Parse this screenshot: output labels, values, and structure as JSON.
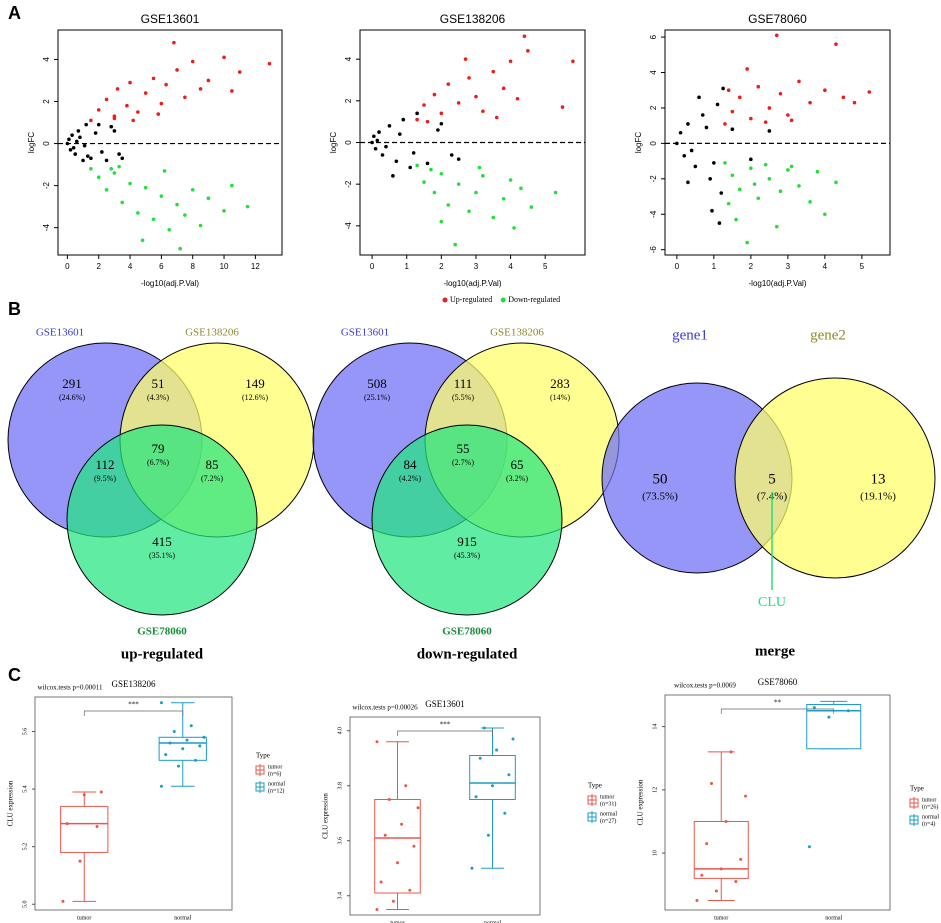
{
  "panel_labels": [
    "A",
    "B",
    "C"
  ],
  "legend": [
    {
      "label": "Up-regulated",
      "color": "#ee1c1c"
    },
    {
      "label": "Down-regulated",
      "color": "#22e03a"
    }
  ],
  "chart_data": [
    {
      "type": "scatter",
      "title": "GSE13601",
      "xlabel": "-log10(adj.P.Val)",
      "ylabel": "logFC",
      "xlim": [
        -0.6,
        13.7
      ],
      "ylim": [
        -5.3,
        5.4
      ],
      "xticks": [
        0,
        2,
        4,
        6,
        8,
        10,
        12
      ],
      "yticks": [
        -4,
        -2,
        0,
        2,
        4
      ],
      "hline": 0,
      "series": [
        {
          "color": "#ee1c1c",
          "x": [
            1.5,
            2,
            2.5,
            3,
            3.2,
            3.8,
            4,
            4.5,
            5,
            5.5,
            6,
            6.3,
            7,
            7.5,
            8,
            8.5,
            9,
            10,
            10.5,
            11,
            12.9,
            3,
            4.2,
            5.8,
            6.8
          ],
          "y": [
            1.1,
            1.6,
            2.1,
            1.3,
            2.6,
            1.8,
            2.9,
            1.5,
            2.4,
            3.1,
            1.9,
            2.8,
            3.5,
            2.2,
            3.9,
            2.6,
            3.0,
            4.1,
            2.5,
            3.4,
            3.8,
            1.2,
            1.1,
            1.4,
            4.8
          ]
        },
        {
          "color": "#22e03a",
          "x": [
            1.5,
            2,
            2.5,
            3,
            3.5,
            4,
            4.5,
            5,
            5.5,
            6,
            6.5,
            7,
            7.5,
            8,
            8.5,
            9,
            10,
            10.5,
            11.5,
            3.3,
            4.8,
            6.2,
            7.2,
            2.8
          ],
          "y": [
            -1.2,
            -1.6,
            -2.2,
            -1.4,
            -2.8,
            -1.9,
            -3.3,
            -2.1,
            -3.6,
            -2.5,
            -4.1,
            -2.9,
            -3.4,
            -2.2,
            -3.9,
            -2.6,
            -3.2,
            -2.0,
            -3.0,
            -1.1,
            -4.6,
            -1.3,
            -5.0,
            -1.2
          ]
        },
        {
          "color": "#000000",
          "x": [
            0,
            0.1,
            0.2,
            0.3,
            0.5,
            0.7,
            1,
            1.2,
            1.5,
            2,
            2.5,
            3,
            3.5,
            0.4,
            0.8,
            1.3,
            1.8,
            2.2,
            2.8,
            3.3,
            0.6,
            1.1
          ],
          "y": [
            0,
            0.2,
            -0.3,
            0.4,
            -0.5,
            0.6,
            -0.8,
            0.9,
            -0.7,
            0.9,
            -0.8,
            0.6,
            -0.7,
            -0.2,
            0.3,
            -0.6,
            0.5,
            -0.4,
            0.8,
            -0.5,
            0.1,
            -0.1
          ]
        }
      ]
    },
    {
      "type": "scatter",
      "title": "GSE138206",
      "xlabel": "-log10(adj.P.Val)",
      "ylabel": "logFC",
      "xlim": [
        -0.35,
        6.15
      ],
      "ylim": [
        -5.4,
        5.4
      ],
      "xticks": [
        0,
        1,
        2,
        3,
        4,
        5
      ],
      "yticks": [
        -4,
        -2,
        0,
        2,
        4
      ],
      "hline": 0,
      "series": [
        {
          "color": "#ee1c1c",
          "x": [
            1.3,
            1.5,
            1.8,
            2,
            2.2,
            2.5,
            2.8,
            3,
            3.2,
            3.5,
            3.8,
            4,
            4.2,
            4.5,
            5.5,
            5.8,
            2.7,
            3.6,
            4.4,
            1.6
          ],
          "y": [
            1.1,
            1.8,
            2.3,
            1.4,
            2.8,
            1.9,
            3.1,
            2.2,
            1.5,
            3.4,
            2.6,
            3.9,
            2.1,
            4.4,
            1.7,
            3.9,
            4.0,
            1.2,
            5.1,
            1.0
          ]
        },
        {
          "color": "#22e03a",
          "x": [
            1.3,
            1.5,
            1.8,
            2,
            2.2,
            2.5,
            2.8,
            3,
            3.2,
            3.5,
            3.8,
            4,
            4.3,
            4.6,
            5.3,
            2.4,
            3.1,
            2.0,
            1.7,
            4.1
          ],
          "y": [
            -1.1,
            -1.9,
            -2.4,
            -1.5,
            -3.0,
            -2.0,
            -3.3,
            -2.4,
            -1.6,
            -3.6,
            -2.7,
            -1.8,
            -2.2,
            -3.1,
            -2.4,
            -4.9,
            -1.2,
            -3.8,
            -1.3,
            -4.1
          ]
        },
        {
          "color": "#000000",
          "x": [
            0,
            0.05,
            0.1,
            0.2,
            0.3,
            0.5,
            0.7,
            0.9,
            1.1,
            1.3,
            1.6,
            2,
            2.5,
            0.4,
            0.8,
            1.2,
            1.9,
            2.3,
            0.15,
            0.6
          ],
          "y": [
            0,
            0.3,
            -0.3,
            0.5,
            -0.6,
            0.8,
            -0.9,
            1.1,
            -1.2,
            1.4,
            -1.0,
            0.9,
            -0.8,
            -0.2,
            0.4,
            -0.5,
            0.6,
            -0.6,
            0.1,
            -1.6
          ]
        }
      ]
    },
    {
      "type": "scatter",
      "title": "GSE78060",
      "xlabel": "-log10(adj.P.Val)",
      "ylabel": "logFC",
      "xlim": [
        -0.32,
        5.76
      ],
      "ylim": [
        -6.3,
        6.4
      ],
      "xticks": [
        0,
        1,
        2,
        3,
        4,
        5
      ],
      "yticks": [
        -6,
        -4,
        -2,
        0,
        2,
        4,
        6
      ],
      "hline": 0,
      "series": [
        {
          "color": "#ee1c1c",
          "x": [
            1.3,
            1.5,
            1.7,
            2,
            2.2,
            2.5,
            2.8,
            3,
            3.3,
            3.6,
            4,
            4.3,
            4.5,
            5.2,
            1.9,
            2.4,
            3.1,
            2.7,
            4.8,
            1.4
          ],
          "y": [
            1.1,
            1.8,
            2.6,
            1.4,
            3.2,
            2.0,
            2.8,
            1.6,
            3.5,
            2.3,
            3.0,
            5.6,
            2.6,
            2.9,
            4.2,
            1.2,
            1.3,
            6.1,
            2.3,
            3.0
          ]
        },
        {
          "color": "#22e03a",
          "x": [
            1.3,
            1.5,
            1.7,
            2,
            2.2,
            2.5,
            2.8,
            3,
            3.3,
            3.6,
            4,
            4.3,
            1.9,
            2.4,
            3.1,
            2.7,
            1.4,
            1.6,
            2.1,
            3.8
          ],
          "y": [
            -1.1,
            -1.8,
            -2.6,
            -1.4,
            -3.1,
            -2.0,
            -2.7,
            -1.5,
            -2.4,
            -3.3,
            -4.0,
            -2.2,
            -5.6,
            -1.2,
            -1.3,
            -4.7,
            -3.4,
            -4.3,
            -2.3,
            -1.6
          ]
        },
        {
          "color": "#000000",
          "x": [
            0,
            0.1,
            0.2,
            0.3,
            0.5,
            0.7,
            0.9,
            1.1,
            1.2,
            0.4,
            0.8,
            1,
            0.6,
            1.25,
            1.5,
            2,
            2.5,
            0.95,
            1.15,
            0.3
          ],
          "y": [
            0,
            0.6,
            -0.7,
            1.1,
            -1.3,
            1.6,
            -2.0,
            2.2,
            -2.8,
            -0.4,
            0.9,
            -1.1,
            2.6,
            3.1,
            0.8,
            -0.9,
            0.7,
            -3.8,
            -4.5,
            -2.2
          ]
        }
      ]
    },
    {
      "type": "venn",
      "title": "up-regulated",
      "sets": [
        {
          "name": "GSE13601",
          "color": "#6e6ef6",
          "label_color": "#3a3ad8"
        },
        {
          "name": "GSE138206",
          "color": "#ffff66",
          "label_color": "#8c8a2a"
        },
        {
          "name": "GSE78060",
          "color": "#22e47e",
          "label_color": "#1a8a3a"
        }
      ],
      "regions": [
        {
          "count": 291,
          "share": 24.6,
          "share_label": "(24.6%)"
        },
        {
          "count": 51,
          "share": 4.3,
          "share_label": "(4.3%)"
        },
        {
          "count": 149,
          "share": 12.6,
          "share_label": "(12.6%)"
        },
        {
          "count": 79,
          "share": 6.7,
          "share_label": "(6.7%)"
        },
        {
          "count": 112,
          "share": 9.5,
          "share_label": "(9.5%)"
        },
        {
          "count": 85,
          "share": 7.2,
          "share_label": "(7.2%)"
        },
        {
          "count": 415,
          "share": 35.1,
          "share_label": "(35.1%)"
        }
      ]
    },
    {
      "type": "venn",
      "title": "down-regulated",
      "sets": [
        {
          "name": "GSE13601",
          "color": "#6e6ef6",
          "label_color": "#3a3ad8"
        },
        {
          "name": "GSE138206",
          "color": "#ffff66",
          "label_color": "#8c8a2a"
        },
        {
          "name": "GSE78060",
          "color": "#22e47e",
          "label_color": "#1a8a3a"
        }
      ],
      "regions": [
        {
          "count": 508,
          "share": 25.1,
          "share_label": "(25.1%)"
        },
        {
          "count": 111,
          "share": 5.5,
          "share_label": "(5.5%)"
        },
        {
          "count": 283,
          "share": 14,
          "share_label": "(14%)"
        },
        {
          "count": 55,
          "share": 2.7,
          "share_label": "(2.7%)"
        },
        {
          "count": 84,
          "share": 4.2,
          "share_label": "(4.2%)"
        },
        {
          "count": 65,
          "share": 3.2,
          "share_label": "(3.2%)"
        },
        {
          "count": 915,
          "share": 45.3,
          "share_label": "(45.3%)"
        }
      ]
    },
    {
      "type": "venn",
      "title": "merge",
      "annotation": "CLU",
      "sets": [
        {
          "name": "gene1",
          "color": "#6e6ef6",
          "label_color": "#3a3ad8"
        },
        {
          "name": "gene2",
          "color": "#ffff66",
          "label_color": "#8c8a2a"
        }
      ],
      "regions": [
        {
          "count": 50,
          "share": 73.5,
          "share_label": "(73.5%)"
        },
        {
          "count": 5,
          "share": 7.4,
          "share_label": "(7.4%)"
        },
        {
          "count": 13,
          "share": 19.1,
          "share_label": "(19.1%)"
        }
      ]
    },
    {
      "type": "box",
      "title": "GSE138206",
      "stat_label": "wilcox.tests p=0.00011",
      "significance": "***",
      "ylabel": "CLU expression",
      "legend_title": "Type",
      "ylim": [
        4.98,
        5.72
      ],
      "yticks": [
        {
          "value": 5.0,
          "label": "5.0"
        },
        {
          "value": 5.2,
          "label": "5.2"
        },
        {
          "value": 5.4,
          "label": "5.4"
        },
        {
          "value": 5.6,
          "label": "5.6"
        }
      ],
      "categories": [
        "tumor",
        "normal"
      ],
      "category_labels": [
        "(n=6)",
        "(n=12)"
      ],
      "colors": [
        "#e8584b",
        "#1d9cc4"
      ],
      "boxes": [
        {
          "low": 5.01,
          "q1": 5.18,
          "median": 5.28,
          "q3": 5.34,
          "high": 5.39,
          "points": [
            5.01,
            5.15,
            5.27,
            5.28,
            5.38,
            5.39
          ]
        },
        {
          "low": 5.41,
          "q1": 5.5,
          "median": 5.56,
          "q3": 5.58,
          "high": 5.7,
          "points": [
            5.41,
            5.48,
            5.5,
            5.52,
            5.54,
            5.55,
            5.56,
            5.57,
            5.58,
            5.6,
            5.62,
            5.7
          ]
        }
      ]
    },
    {
      "type": "box",
      "title": "GSE13601",
      "stat_label": "wilcox.tests p=0.00026",
      "significance": "***",
      "ylabel": "CLU expression",
      "legend_title": "Type",
      "ylim": [
        3.33,
        4.05
      ],
      "yticks": [
        {
          "value": 3.4,
          "label": "3.4"
        },
        {
          "value": 3.6,
          "label": "3.6"
        },
        {
          "value": 3.8,
          "label": "3.8"
        },
        {
          "value": 4.0,
          "label": "4.0"
        }
      ],
      "categories": [
        "tumor",
        "normal"
      ],
      "category_labels": [
        "(n=31)",
        "(n=27)"
      ],
      "colors": [
        "#e8584b",
        "#1d9cc4"
      ],
      "boxes": [
        {
          "low": 3.35,
          "q1": 3.41,
          "median": 3.61,
          "q3": 3.75,
          "high": 3.96,
          "points": [
            3.35,
            3.38,
            3.42,
            3.45,
            3.52,
            3.58,
            3.62,
            3.66,
            3.72,
            3.75,
            3.8,
            3.96
          ]
        },
        {
          "low": 3.5,
          "q1": 3.75,
          "median": 3.81,
          "q3": 3.91,
          "high": 4.01,
          "points": [
            3.5,
            3.62,
            3.7,
            3.76,
            3.8,
            3.84,
            3.9,
            3.93,
            3.97,
            4.01
          ]
        }
      ]
    },
    {
      "type": "box",
      "title": "GSE78060",
      "stat_label": "wilcox.tests p=0.0069",
      "significance": "**",
      "ylabel": "CLU expression",
      "legend_title": "Type",
      "ylim": [
        8.2,
        15
      ],
      "yticks": [
        10,
        12,
        14
      ],
      "categories": [
        "tumor",
        "normal"
      ],
      "category_labels": [
        "(n=26)",
        "(n=4)"
      ],
      "colors": [
        "#e8584b",
        "#1d9cc4"
      ],
      "boxes": [
        {
          "low": 8.5,
          "q1": 9.2,
          "median": 9.5,
          "q3": 11.0,
          "high": 13.2,
          "points": [
            8.5,
            8.8,
            9.1,
            9.3,
            9.5,
            9.8,
            10.3,
            11.0,
            11.8,
            12.2,
            13.2
          ]
        },
        {
          "low": 13.3,
          "q1": 13.3,
          "median": 14.5,
          "q3": 14.7,
          "high": 14.8,
          "points": [
            10.2,
            14.3,
            14.5,
            14.6
          ]
        }
      ]
    }
  ]
}
